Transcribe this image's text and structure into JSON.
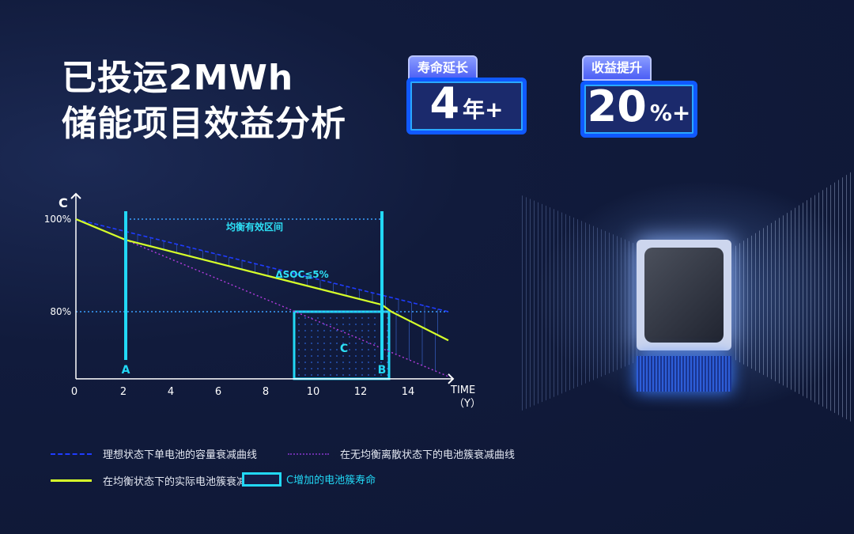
{
  "title": {
    "line1": "已投运2MWh",
    "line2": "储能项目效益分析"
  },
  "badges": [
    {
      "tag": "寿命延长",
      "value": "4",
      "unit": "年+"
    },
    {
      "tag": "收益提升",
      "value": "20",
      "unit": "%+"
    }
  ],
  "legend": [
    {
      "label": "理想状态下单电池的容量衰减曲线",
      "color": "#1f3cff",
      "style": "dashed"
    },
    {
      "label": "在无均衡离散状态下的电池簇衰减曲线",
      "color": "#8a2fc9",
      "style": "dotted"
    },
    {
      "label": "在均衡状态下的实际电池簇衰减曲线",
      "color": "#d6ff2a",
      "style": "solid"
    },
    {
      "label": "C增加的电池簇寿命",
      "color": "#22d8f5",
      "style": "box"
    }
  ],
  "chart_data": {
    "type": "line",
    "xlabel": "TIME",
    "xunit": "（Y）",
    "ylabel": "C",
    "xticks": [
      "0",
      "2",
      "4",
      "6",
      "8",
      "10",
      "12",
      "14"
    ],
    "yticks": [
      "100%",
      "80%"
    ],
    "xlim": [
      0,
      15.7
    ],
    "ylim": [
      65.5,
      100
    ],
    "series": [
      {
        "key": "ideal",
        "color": "#1f3cff",
        "points": [
          [
            0,
            100
          ],
          [
            15.7,
            80
          ]
        ]
      },
      {
        "key": "no_balance",
        "color": "#b43ce0",
        "points": [
          [
            2.1,
            95.5
          ],
          [
            15.7,
            66
          ]
        ]
      },
      {
        "key": "balanced",
        "color": "#d6ff2a",
        "points": [
          [
            0,
            100
          ],
          [
            2.1,
            95.5
          ],
          [
            12.9,
            81.5
          ],
          [
            13.3,
            80
          ],
          [
            15.7,
            73.8
          ]
        ]
      }
    ],
    "markers": [
      {
        "label": "A",
        "x": 2.1
      },
      {
        "label": "B",
        "x": 12.9
      }
    ],
    "annotations": {
      "range_label": "均衡有效区间",
      "delta_label": "ΔSOC≦5%",
      "box_label": "C",
      "box": {
        "x": [
          9.2,
          13.2
        ],
        "y": [
          65.5,
          80
        ]
      }
    }
  }
}
